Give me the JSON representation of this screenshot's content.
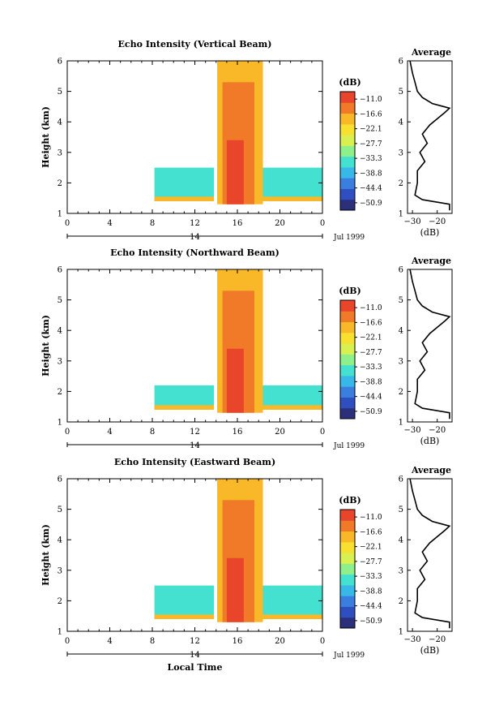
{
  "figure": {
    "x_axis_label": "Local Time",
    "date_label": "Jul 1999",
    "day_label": "14",
    "avg_title": "Average",
    "avg_xlabel": "(dB)",
    "cbar_unit": "(dB)"
  },
  "chart_data": [
    {
      "type": "heatmap",
      "title": "Echo Intensity (Vertical Beam)",
      "xlabel": "",
      "ylabel": "Height (km)",
      "xlim": [
        0,
        24
      ],
      "ylim": [
        1,
        6
      ],
      "x_ticks": [
        "0",
        "4",
        "8",
        "12",
        "16",
        "20",
        "0"
      ],
      "y_ticks": [
        "1",
        "2",
        "3",
        "4",
        "5",
        "6"
      ],
      "colorbar": {
        "unit": "(dB)",
        "levels": [
          -50.9,
          -44.4,
          -38.8,
          -33.3,
          -27.7,
          -22.1,
          -16.6,
          -11.0
        ]
      },
      "regions": [
        {
          "x0": 8.2,
          "x1": 13.8,
          "y0": 1.4,
          "y1": 2.5,
          "db": -33
        },
        {
          "x0": 8.2,
          "x1": 13.8,
          "y0": 1.4,
          "y1": 1.55,
          "db": -20
        },
        {
          "x0": 18.4,
          "x1": 24,
          "y0": 1.4,
          "y1": 2.5,
          "db": -33
        },
        {
          "x0": 18.4,
          "x1": 24,
          "y0": 1.4,
          "y1": 1.55,
          "db": -20
        },
        {
          "x0": 14.1,
          "x1": 18.4,
          "y0": 1.3,
          "y1": 6.0,
          "db": -19
        },
        {
          "x0": 14.6,
          "x1": 17.6,
          "y0": 1.3,
          "y1": 5.3,
          "db": -15
        },
        {
          "x0": 15.0,
          "x1": 16.6,
          "y0": 1.3,
          "y1": 3.4,
          "db": -11
        }
      ],
      "average_profile": {
        "xlabel": "(dB)",
        "xlim": [
          -32,
          -14
        ],
        "x_ticks": [
          -30,
          -20
        ],
        "ylim": [
          1,
          6
        ],
        "height": [
          1.1,
          1.3,
          1.45,
          1.6,
          2.0,
          2.4,
          2.7,
          3.0,
          3.3,
          3.6,
          3.9,
          4.1,
          4.3,
          4.45,
          4.6,
          4.8,
          5.0,
          5.3,
          5.6,
          6.0
        ],
        "db": [
          -15,
          -15,
          -26,
          -29,
          -28,
          -28,
          -25,
          -27,
          -24,
          -26,
          -23,
          -20,
          -17,
          -15,
          -22,
          -26,
          -28,
          -29,
          -30,
          -31
        ]
      }
    },
    {
      "type": "heatmap",
      "title": "Echo Intensity (Northward Beam)",
      "xlabel": "",
      "ylabel": "Height (km)",
      "xlim": [
        0,
        24
      ],
      "ylim": [
        1,
        6
      ],
      "x_ticks": [
        "0",
        "4",
        "8",
        "12",
        "16",
        "20",
        "0"
      ],
      "y_ticks": [
        "1",
        "2",
        "3",
        "4",
        "5",
        "6"
      ],
      "colorbar": {
        "unit": "(dB)",
        "levels": [
          -50.9,
          -44.4,
          -38.8,
          -33.3,
          -27.7,
          -22.1,
          -16.6,
          -11.0
        ]
      },
      "regions": [
        {
          "x0": 8.2,
          "x1": 13.8,
          "y0": 1.4,
          "y1": 2.2,
          "db": -33
        },
        {
          "x0": 8.2,
          "x1": 13.8,
          "y0": 1.4,
          "y1": 1.55,
          "db": -20
        },
        {
          "x0": 18.4,
          "x1": 24,
          "y0": 1.4,
          "y1": 2.2,
          "db": -33
        },
        {
          "x0": 18.4,
          "x1": 24,
          "y0": 1.4,
          "y1": 1.55,
          "db": -20
        },
        {
          "x0": 14.1,
          "x1": 18.4,
          "y0": 1.3,
          "y1": 6.0,
          "db": -19
        },
        {
          "x0": 14.6,
          "x1": 17.6,
          "y0": 1.3,
          "y1": 5.3,
          "db": -15
        },
        {
          "x0": 15.0,
          "x1": 16.6,
          "y0": 1.3,
          "y1": 3.4,
          "db": -11
        }
      ],
      "average_profile": {
        "xlabel": "(dB)",
        "xlim": [
          -32,
          -14
        ],
        "x_ticks": [
          -30,
          -20
        ],
        "ylim": [
          1,
          6
        ],
        "height": [
          1.1,
          1.3,
          1.45,
          1.6,
          2.0,
          2.4,
          2.7,
          3.0,
          3.3,
          3.6,
          3.9,
          4.1,
          4.3,
          4.45,
          4.6,
          4.8,
          5.0,
          5.3,
          5.6,
          6.0
        ],
        "db": [
          -15,
          -15,
          -26,
          -29,
          -28,
          -28,
          -25,
          -27,
          -24,
          -26,
          -23,
          -20,
          -17,
          -15,
          -22,
          -26,
          -28,
          -29,
          -30,
          -31
        ]
      }
    },
    {
      "type": "heatmap",
      "title": "Echo Intensity (Eastward Beam)",
      "xlabel": "Local Time",
      "ylabel": "Height (km)",
      "xlim": [
        0,
        24
      ],
      "ylim": [
        1,
        6
      ],
      "x_ticks": [
        "0",
        "4",
        "8",
        "12",
        "16",
        "20",
        "0"
      ],
      "y_ticks": [
        "1",
        "2",
        "3",
        "4",
        "5",
        "6"
      ],
      "colorbar": {
        "unit": "(dB)",
        "levels": [
          -50.9,
          -44.4,
          -38.8,
          -33.3,
          -27.7,
          -22.1,
          -16.6,
          -11.0
        ]
      },
      "regions": [
        {
          "x0": 8.2,
          "x1": 13.8,
          "y0": 1.4,
          "y1": 2.5,
          "db": -33
        },
        {
          "x0": 8.2,
          "x1": 13.8,
          "y0": 1.4,
          "y1": 1.55,
          "db": -20
        },
        {
          "x0": 18.4,
          "x1": 24,
          "y0": 1.4,
          "y1": 2.5,
          "db": -33
        },
        {
          "x0": 18.4,
          "x1": 24,
          "y0": 1.4,
          "y1": 1.55,
          "db": -20
        },
        {
          "x0": 14.1,
          "x1": 18.4,
          "y0": 1.3,
          "y1": 6.0,
          "db": -19
        },
        {
          "x0": 14.6,
          "x1": 17.6,
          "y0": 1.3,
          "y1": 5.3,
          "db": -15
        },
        {
          "x0": 15.0,
          "x1": 16.6,
          "y0": 1.3,
          "y1": 3.4,
          "db": -11
        }
      ],
      "average_profile": {
        "xlabel": "(dB)",
        "xlim": [
          -32,
          -14
        ],
        "x_ticks": [
          -30,
          -20
        ],
        "ylim": [
          1,
          6
        ],
        "height": [
          1.1,
          1.3,
          1.45,
          1.6,
          2.0,
          2.4,
          2.7,
          3.0,
          3.3,
          3.6,
          3.9,
          4.1,
          4.3,
          4.45,
          4.6,
          4.8,
          5.0,
          5.3,
          5.6,
          6.0
        ],
        "db": [
          -15,
          -15,
          -26,
          -29,
          -28,
          -28,
          -25,
          -27,
          -24,
          -26,
          -23,
          -20,
          -17,
          -15,
          -22,
          -26,
          -28,
          -29,
          -30,
          -31
        ]
      }
    }
  ],
  "colors": {
    "scale": [
      "#2c2f7a",
      "#2f4fc0",
      "#3a7ee0",
      "#38b8e8",
      "#44e0d0",
      "#8ef08a",
      "#d8f050",
      "#f8e030",
      "#f8b828",
      "#f07a28",
      "#e8452a"
    ]
  }
}
